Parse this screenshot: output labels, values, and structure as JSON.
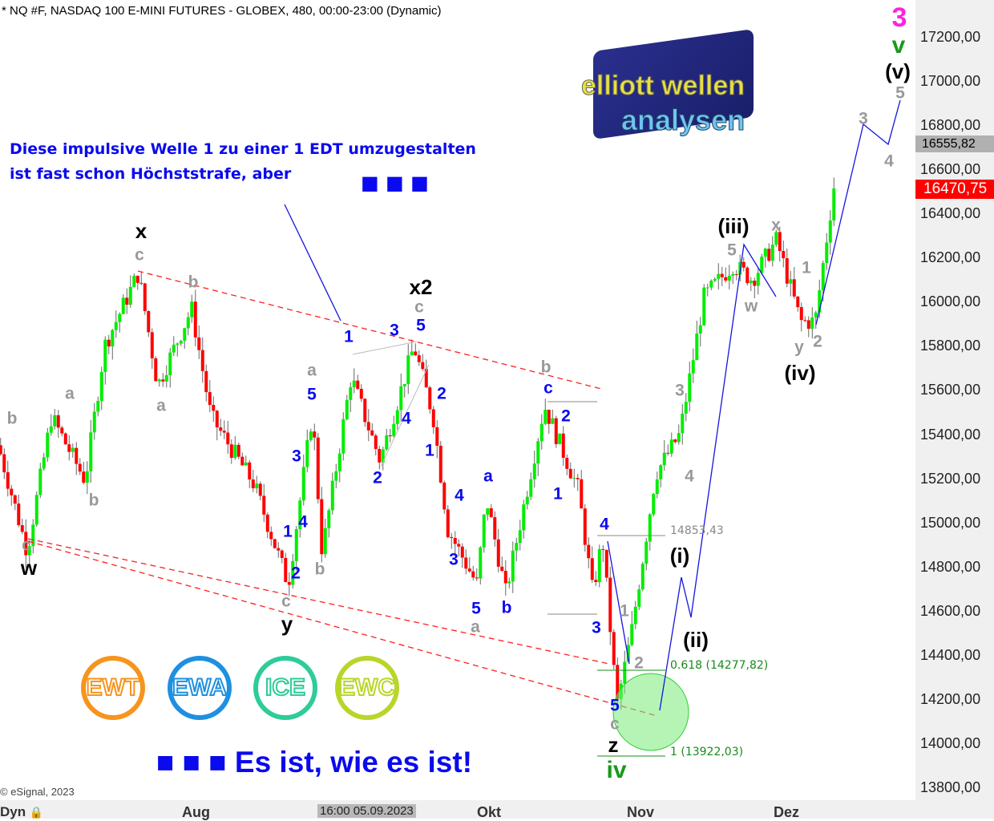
{
  "title": "* NQ #F, NASDAQ 100 E-MINI FUTURES - GLOBEX, 480, 00:00-23:00 (Dynamic)",
  "copyright": "© eSignal, 2023",
  "dyn_label": "Dyn",
  "crosshair_label": "16:00 05.09.2023",
  "message": {
    "line1": "Diese impulsive Welle 1 zu einer 1 EDT umzugestalten",
    "line2": "ist fast schon Höchststrafe, aber",
    "dots": "■ ■ ■",
    "footer": "■ ■ ■  Es ist, wie es ist!"
  },
  "logo": {
    "line1": "elliott wellen",
    "line2": "analysen"
  },
  "badges": [
    {
      "text": "EWT",
      "color": "#f7941d"
    },
    {
      "text": "EWA",
      "color": "#1e90e0"
    },
    {
      "text": "ICE",
      "color": "#2ecc9a"
    },
    {
      "text": "EWC",
      "color": "#b8d62a"
    }
  ],
  "colors": {
    "up": "#00ee00",
    "down": "#ff0000",
    "wave_blue": "#0a0aee",
    "trend": "#ff0000",
    "fib": "#1a8a1a"
  },
  "chart_data": {
    "type": "candlestick",
    "ylim": [
      13750,
      17350
    ],
    "yticks": [
      "17200,00",
      "17000,00",
      "16800,00",
      "16600,00",
      "16400,00",
      "16200,00",
      "16000,00",
      "15800,00",
      "15600,00",
      "15400,00",
      "15200,00",
      "15000,00",
      "14800,00",
      "14600,00",
      "14400,00",
      "14200,00",
      "14000,00",
      "13800,00"
    ],
    "xticks": [
      "Aug",
      "Okt",
      "Nov",
      "Dez"
    ],
    "price_path": [
      [
        "2023-06-21",
        15350
      ],
      [
        "2023-06-27",
        14870
      ],
      [
        "2023-07-02",
        15480
      ],
      [
        "2023-07-09",
        15190
      ],
      [
        "2023-07-13",
        15800
      ],
      [
        "2023-07-20",
        16130
      ],
      [
        "2023-07-24",
        15620
      ],
      [
        "2023-07-31",
        15970
      ],
      [
        "2023-08-04",
        15480
      ],
      [
        "2023-08-13",
        15170
      ],
      [
        "2023-08-20",
        14720
      ],
      [
        "2023-08-25",
        15500
      ],
      [
        "2023-08-27",
        14860
      ],
      [
        "2023-09-02",
        15660
      ],
      [
        "2023-09-08",
        15280
      ],
      [
        "2023-09-15",
        15800
      ],
      [
        "2023-09-19",
        15480
      ],
      [
        "2023-09-22",
        14970
      ],
      [
        "2023-09-28",
        14720
      ],
      [
        "2023-09-30",
        15110
      ],
      [
        "2023-10-04",
        14680
      ],
      [
        "2023-10-12",
        15530
      ],
      [
        "2023-10-19",
        15150
      ],
      [
        "2023-10-22",
        14680
      ],
      [
        "2023-10-24",
        14930
      ],
      [
        "2023-10-27",
        14170
      ],
      [
        "2023-10-30",
        14500
      ],
      [
        "2023-11-04",
        15220
      ],
      [
        "2023-11-09",
        15400
      ],
      [
        "2023-11-14",
        16020
      ],
      [
        "2023-11-20",
        16170
      ],
      [
        "2023-11-24",
        16100
      ],
      [
        "2023-11-29",
        16280
      ],
      [
        "2023-12-04",
        15910
      ],
      [
        "2023-12-07",
        15910
      ],
      [
        "2023-12-11",
        16540
      ]
    ],
    "last_price": "16470,75",
    "marker_price": "16555,82",
    "levels": [
      {
        "label": "14853,43",
        "price": 14853.43,
        "color": "#888"
      },
      {
        "label": "0.618 (14277,82)",
        "price": 14277.82,
        "color": "#1a8a1a"
      },
      {
        "label": "1 (13922,03)",
        "price": 13922.03,
        "color": "#1a8a1a"
      }
    ],
    "annotations": [
      {
        "t": "x",
        "c": "black"
      },
      {
        "t": "x2",
        "c": "black"
      },
      {
        "t": "w",
        "c": "black"
      },
      {
        "t": "y",
        "c": "black"
      },
      {
        "t": "z",
        "c": "black"
      },
      {
        "t": "(iii)",
        "c": "black"
      },
      {
        "t": "(iv)",
        "c": "black"
      },
      {
        "t": "(i)",
        "c": "black"
      },
      {
        "t": "(ii)",
        "c": "black"
      },
      {
        "t": "(v)",
        "c": "black"
      },
      {
        "t": "c",
        "c": "grey"
      },
      {
        "t": "b",
        "c": "grey"
      },
      {
        "t": "a",
        "c": "grey"
      },
      {
        "t": "a",
        "c": "grey"
      },
      {
        "t": "b",
        "c": "grey"
      },
      {
        "t": "b",
        "c": "grey"
      },
      {
        "t": "c",
        "c": "grey"
      },
      {
        "t": "c",
        "c": "grey"
      },
      {
        "t": "b",
        "c": "grey"
      },
      {
        "t": "a",
        "c": "grey"
      },
      {
        "t": "c",
        "c": "grey"
      },
      {
        "t": "b",
        "c": "grey"
      },
      {
        "t": "a",
        "c": "grey"
      },
      {
        "t": "5",
        "c": "grey"
      },
      {
        "t": "x",
        "c": "grey"
      },
      {
        "t": "w",
        "c": "grey"
      },
      {
        "t": "1",
        "c": "grey"
      },
      {
        "t": "y",
        "c": "grey"
      },
      {
        "t": "2",
        "c": "grey"
      },
      {
        "t": "3",
        "c": "grey"
      },
      {
        "t": "4",
        "c": "grey"
      },
      {
        "t": "1",
        "c": "grey"
      },
      {
        "t": "2",
        "c": "grey"
      },
      {
        "t": "c",
        "c": "grey"
      },
      {
        "t": "3",
        "c": "grey"
      },
      {
        "t": "4",
        "c": "grey"
      },
      {
        "t": "5",
        "c": "grey"
      },
      {
        "t": "1",
        "c": "blue"
      },
      {
        "t": "3",
        "c": "blue"
      },
      {
        "t": "5",
        "c": "blue"
      },
      {
        "t": "2",
        "c": "blue"
      },
      {
        "t": "4",
        "c": "blue"
      },
      {
        "t": "1",
        "c": "blue"
      },
      {
        "t": "2",
        "c": "blue"
      },
      {
        "t": "3",
        "c": "blue"
      },
      {
        "t": "5",
        "c": "blue"
      },
      {
        "t": "1",
        "c": "blue"
      },
      {
        "t": "4",
        "c": "blue"
      },
      {
        "t": "2",
        "c": "blue"
      },
      {
        "t": "4",
        "c": "blue"
      },
      {
        "t": "3",
        "c": "blue"
      },
      {
        "t": "5",
        "c": "blue"
      },
      {
        "t": "b",
        "c": "blue"
      },
      {
        "t": "a",
        "c": "blue"
      },
      {
        "t": "c",
        "c": "blue"
      },
      {
        "t": "2",
        "c": "blue"
      },
      {
        "t": "1",
        "c": "blue"
      },
      {
        "t": "4",
        "c": "blue"
      },
      {
        "t": "3",
        "c": "blue"
      },
      {
        "t": "5",
        "c": "blue"
      },
      {
        "t": "v",
        "c": "green"
      },
      {
        "t": "iv",
        "c": "green"
      },
      {
        "t": "3",
        "c": "mag"
      }
    ]
  }
}
